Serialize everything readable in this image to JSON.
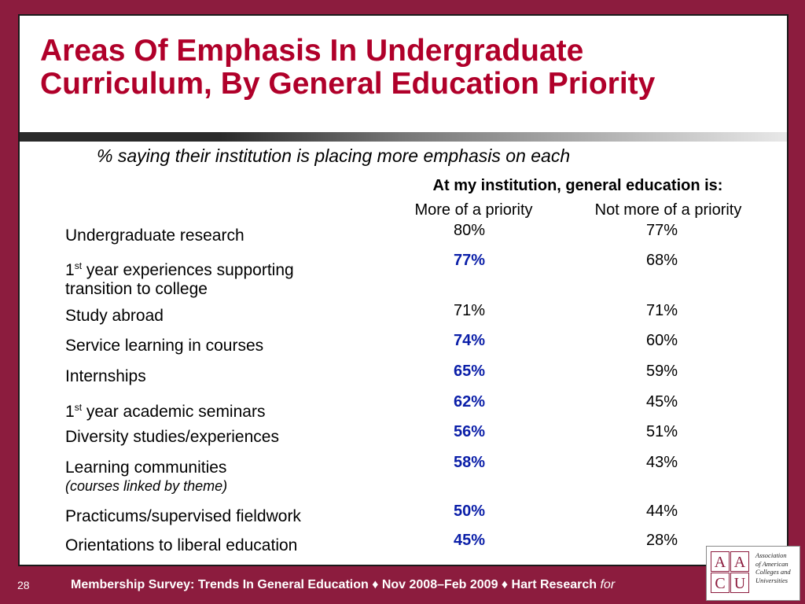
{
  "title": {
    "line1": "Areas Of Emphasis In Undergraduate",
    "line2": "Curriculum, By General Education Priority"
  },
  "subtitle": "% saying their institution is placing more emphasis on each",
  "column_header": "At my institution, general education is:",
  "columns": [
    "More of a priority",
    "Not more of a priority"
  ],
  "rows": [
    {
      "label": "Undergraduate research",
      "more": "80%",
      "not_more": "77%",
      "highlight": false
    },
    {
      "label_sup": "st",
      "label_pre": "1",
      "label": " year experiences supporting",
      "label_line2": "transition to college",
      "more": "77%",
      "not_more": "68%",
      "highlight": true
    },
    {
      "label": "Study abroad",
      "more": "71%",
      "not_more": "71%",
      "highlight": false
    },
    {
      "label": "Service learning in courses",
      "more": "74%",
      "not_more": "60%",
      "highlight": true
    },
    {
      "label": "Internships",
      "more": "65%",
      "not_more": "59%",
      "highlight": true
    },
    {
      "label_pre": "1",
      "label_sup": "st",
      "label": " year academic seminars",
      "more": "62%",
      "not_more": "45%",
      "highlight": true
    },
    {
      "label": "Diversity studies/experiences",
      "more": "56%",
      "not_more": "51%",
      "highlight": true
    },
    {
      "label": "Learning communities",
      "label_note": "(courses linked by theme)",
      "more": "58%",
      "not_more": "43%",
      "highlight": true
    },
    {
      "label": "Practicums/supervised fieldwork",
      "more": "50%",
      "not_more": "44%",
      "highlight": true
    },
    {
      "label": "Orientations to liberal education",
      "more": "45%",
      "not_more": "28%",
      "highlight": true
    }
  ],
  "footer": {
    "page_number": "28",
    "text": "Membership Survey: Trends In General Education ♦ Nov 2008–Feb 2009 ♦ Hart Research",
    "for": "for"
  },
  "logo": {
    "letters": [
      "A",
      "A",
      "C",
      "U"
    ],
    "text": [
      "Association",
      "of American",
      "Colleges and",
      "Universities"
    ]
  },
  "colors": {
    "background": "#8c1c3e",
    "title": "#b0002a",
    "highlight": "#0a1ea8"
  }
}
